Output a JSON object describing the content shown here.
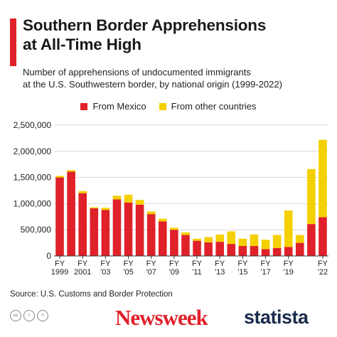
{
  "header": {
    "title_line1": "Southern Border Apprehensions",
    "title_line2": "at All-Time High",
    "subtitle_line1": "Number of apprehensions of undocumented immigrants",
    "subtitle_line2": "at the U.S. Southwestern border, by national origin (1999-2022)"
  },
  "footer": {
    "source": "Source: U.S. Customs and Border Protection",
    "newsweek_logo": "Newsweek",
    "statista_logo": "statista",
    "license_icons": [
      "cc-icon",
      "by-icon",
      "equals-icon"
    ]
  },
  "chart_data": {
    "type": "bar",
    "stacked": true,
    "categories": [
      "FY 1999",
      "FY 2000",
      "FY 2001",
      "FY 2002",
      "FY 2003",
      "FY 2004",
      "FY 2005",
      "FY 2006",
      "FY 2007",
      "FY 2008",
      "FY 2009",
      "FY 2010",
      "FY 2011",
      "FY 2012",
      "FY 2013",
      "FY 2014",
      "FY 2015",
      "FY 2016",
      "FY 2017",
      "FY 2018",
      "FY 2019",
      "FY 2020",
      "FY 2021",
      "FY 2022"
    ],
    "x_tick_labels": [
      {
        "index": 0,
        "top": "FY",
        "bottom": "1999"
      },
      {
        "index": 2,
        "top": "FY",
        "bottom": "2001"
      },
      {
        "index": 4,
        "top": "FY",
        "bottom": "'03"
      },
      {
        "index": 6,
        "top": "FY",
        "bottom": "'05"
      },
      {
        "index": 8,
        "top": "FY",
        "bottom": "'07"
      },
      {
        "index": 10,
        "top": "FY",
        "bottom": "'09"
      },
      {
        "index": 12,
        "top": "FY",
        "bottom": "'11"
      },
      {
        "index": 14,
        "top": "FY",
        "bottom": "'13"
      },
      {
        "index": 16,
        "top": "FY",
        "bottom": "'15"
      },
      {
        "index": 18,
        "top": "FY",
        "bottom": "'17"
      },
      {
        "index": 20,
        "top": "FY",
        "bottom": "'19"
      },
      {
        "index": 23,
        "top": "FY",
        "bottom": "'22"
      }
    ],
    "series": [
      {
        "name": "From Mexico",
        "color": "#e0212a",
        "values": [
          1500000,
          1610000,
          1200000,
          910000,
          880000,
          1080000,
          1020000,
          980000,
          800000,
          660000,
          500000,
          400000,
          290000,
          260000,
          270000,
          230000,
          190000,
          190000,
          130000,
          150000,
          170000,
          250000,
          610000,
          740000
        ]
      },
      {
        "name": "From other countries",
        "color": "#f5d000",
        "values": [
          30000,
          30000,
          40000,
          20000,
          40000,
          70000,
          150000,
          90000,
          50000,
          50000,
          40000,
          50000,
          40000,
          100000,
          140000,
          240000,
          140000,
          220000,
          180000,
          250000,
          700000,
          150000,
          1050000,
          1480000
        ]
      }
    ],
    "y_ticks": [
      "0",
      "500,000",
      "1,000,000",
      "1,500,000",
      "2,000,000",
      "2,500,000"
    ],
    "ylim": [
      0,
      2500000
    ],
    "grid": true,
    "legend_position": "top-center"
  }
}
